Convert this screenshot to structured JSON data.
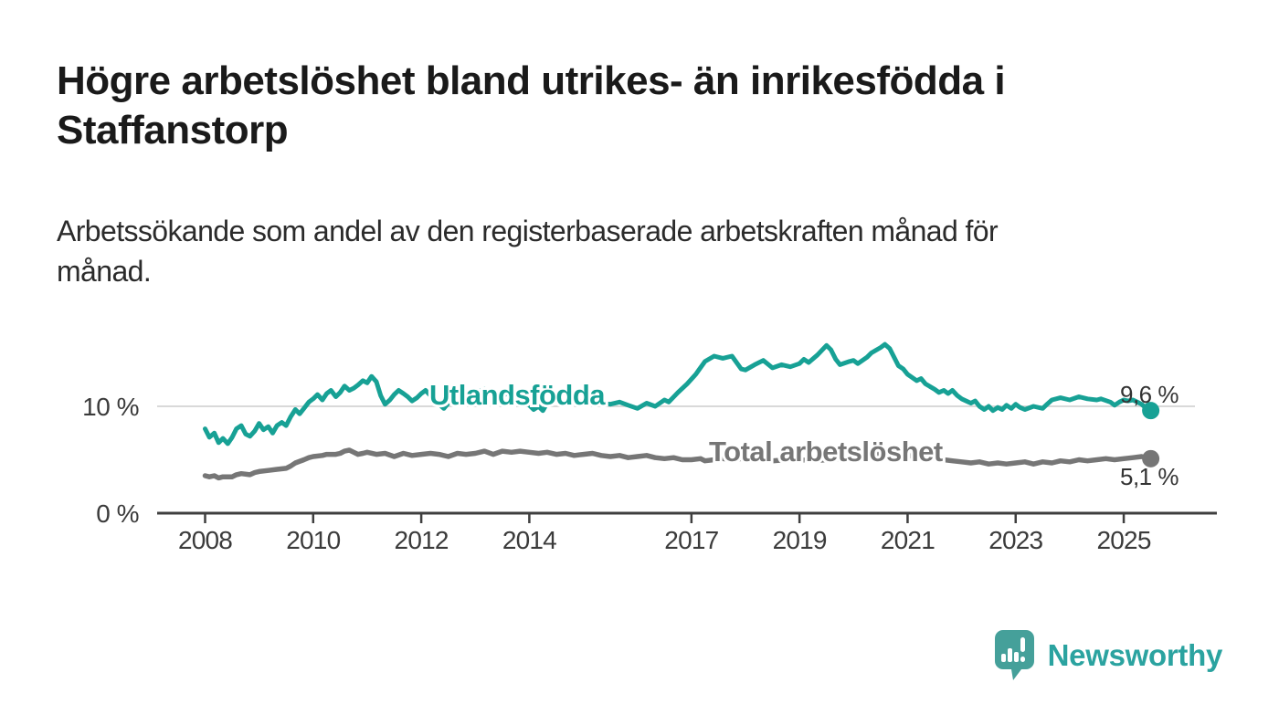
{
  "header": {
    "title": "Högre arbetslöshet bland utrikes- än inrikesfödda i\nStaffanstorp",
    "subtitle": "Arbetssökande som andel av den registerbaserade arbetskraften månad för\nmånad."
  },
  "branding": {
    "name": "Newsworthy",
    "logo_icon": "bar-chart-speech-bubble",
    "logo_color": "#45a09a"
  },
  "chart_data": {
    "type": "line",
    "title": "Högre arbetslöshet bland utrikes- än inrikesfödda i Staffanstorp",
    "subtitle": "Arbetssökande som andel av den registerbaserade arbetskraften månad för månad.",
    "grid": "single horizontal gridline at 10 %",
    "legend_position": "inline labels on lines",
    "colors": {
      "gridline": "#d9d9d9",
      "axis": "#3f3f3f",
      "tick_text": "#3b3b3b",
      "end_label_text": "#333333"
    },
    "x_axis": {
      "unit": "year",
      "range": [
        2007.1,
        2026.75
      ],
      "ticks": [
        2008,
        2010,
        2012,
        2014,
        2017,
        2019,
        2021,
        2023,
        2025
      ]
    },
    "y_axis": {
      "unit": "percent",
      "range": [
        0,
        17.5
      ],
      "ticks": [
        {
          "value": 0,
          "label": "0 %"
        },
        {
          "value": 10,
          "label": "10 %"
        }
      ]
    },
    "series": [
      {
        "name": "Utlandsfödda",
        "color": "#17a195",
        "end_label": "9,6 %",
        "end_value": 9.6,
        "points": [
          [
            2008.0,
            7.9
          ],
          [
            2008.08,
            7.1
          ],
          [
            2008.17,
            7.5
          ],
          [
            2008.25,
            6.6
          ],
          [
            2008.33,
            7.0
          ],
          [
            2008.42,
            6.5
          ],
          [
            2008.5,
            7.1
          ],
          [
            2008.58,
            7.9
          ],
          [
            2008.67,
            8.2
          ],
          [
            2008.75,
            7.4
          ],
          [
            2008.83,
            7.2
          ],
          [
            2008.92,
            7.7
          ],
          [
            2009.0,
            8.4
          ],
          [
            2009.08,
            7.8
          ],
          [
            2009.17,
            8.1
          ],
          [
            2009.25,
            7.5
          ],
          [
            2009.33,
            8.2
          ],
          [
            2009.42,
            8.5
          ],
          [
            2009.5,
            8.2
          ],
          [
            2009.58,
            9.0
          ],
          [
            2009.67,
            9.7
          ],
          [
            2009.75,
            9.3
          ],
          [
            2009.83,
            9.8
          ],
          [
            2009.92,
            10.4
          ],
          [
            2010.0,
            10.7
          ],
          [
            2010.08,
            11.1
          ],
          [
            2010.17,
            10.6
          ],
          [
            2010.25,
            11.2
          ],
          [
            2010.33,
            11.5
          ],
          [
            2010.42,
            10.9
          ],
          [
            2010.5,
            11.3
          ],
          [
            2010.58,
            11.9
          ],
          [
            2010.67,
            11.5
          ],
          [
            2010.75,
            11.7
          ],
          [
            2010.83,
            12.0
          ],
          [
            2010.92,
            12.4
          ],
          [
            2011.0,
            12.2
          ],
          [
            2011.08,
            12.8
          ],
          [
            2011.17,
            12.3
          ],
          [
            2011.25,
            11.0
          ],
          [
            2011.33,
            10.2
          ],
          [
            2011.42,
            10.6
          ],
          [
            2011.5,
            11.1
          ],
          [
            2011.58,
            11.5
          ],
          [
            2011.67,
            11.2
          ],
          [
            2011.75,
            10.9
          ],
          [
            2011.83,
            10.5
          ],
          [
            2011.92,
            10.8
          ],
          [
            2012.0,
            11.2
          ],
          [
            2012.08,
            11.5
          ],
          [
            2012.17,
            11.0
          ],
          [
            2012.25,
            10.6
          ],
          [
            2012.33,
            10.2
          ],
          [
            2012.42,
            9.8
          ],
          [
            2012.5,
            10.3
          ],
          [
            2012.58,
            10.7
          ],
          [
            2012.67,
            11.0
          ],
          [
            2012.83,
            10.8
          ],
          [
            2012.92,
            11.1
          ],
          [
            2013.0,
            11.3
          ],
          [
            2013.17,
            11.6
          ],
          [
            2013.33,
            11.2
          ],
          [
            2013.5,
            11.0
          ],
          [
            2013.67,
            11.4
          ],
          [
            2013.83,
            10.9
          ],
          [
            2014.0,
            10.1
          ],
          [
            2014.08,
            9.7
          ],
          [
            2014.17,
            10.0
          ],
          [
            2014.25,
            9.6
          ],
          [
            2014.33,
            10.3
          ],
          [
            2014.5,
            10.6
          ],
          [
            2014.67,
            10.3
          ],
          [
            2014.83,
            10.6
          ],
          [
            2015.0,
            10.4
          ],
          [
            2015.17,
            10.6
          ],
          [
            2015.33,
            10.3
          ],
          [
            2015.5,
            10.2
          ],
          [
            2015.67,
            10.4
          ],
          [
            2015.83,
            10.1
          ],
          [
            2016.0,
            9.8
          ],
          [
            2016.17,
            10.3
          ],
          [
            2016.33,
            10.0
          ],
          [
            2016.5,
            10.6
          ],
          [
            2016.58,
            10.4
          ],
          [
            2016.75,
            11.3
          ],
          [
            2016.92,
            12.1
          ],
          [
            2017.08,
            13.0
          ],
          [
            2017.25,
            14.2
          ],
          [
            2017.42,
            14.7
          ],
          [
            2017.58,
            14.5
          ],
          [
            2017.75,
            14.7
          ],
          [
            2017.92,
            13.5
          ],
          [
            2018.0,
            13.4
          ],
          [
            2018.17,
            13.9
          ],
          [
            2018.33,
            14.3
          ],
          [
            2018.5,
            13.6
          ],
          [
            2018.67,
            13.9
          ],
          [
            2018.83,
            13.7
          ],
          [
            2019.0,
            14.0
          ],
          [
            2019.08,
            14.4
          ],
          [
            2019.17,
            14.1
          ],
          [
            2019.33,
            14.8
          ],
          [
            2019.5,
            15.7
          ],
          [
            2019.58,
            15.3
          ],
          [
            2019.67,
            14.4
          ],
          [
            2019.75,
            13.9
          ],
          [
            2019.92,
            14.2
          ],
          [
            2020.0,
            14.3
          ],
          [
            2020.08,
            14.0
          ],
          [
            2020.25,
            14.6
          ],
          [
            2020.33,
            15.0
          ],
          [
            2020.5,
            15.5
          ],
          [
            2020.58,
            15.8
          ],
          [
            2020.67,
            15.4
          ],
          [
            2020.75,
            14.6
          ],
          [
            2020.83,
            13.8
          ],
          [
            2020.92,
            13.5
          ],
          [
            2021.0,
            13.0
          ],
          [
            2021.17,
            12.4
          ],
          [
            2021.25,
            12.6
          ],
          [
            2021.33,
            12.1
          ],
          [
            2021.5,
            11.6
          ],
          [
            2021.58,
            11.3
          ],
          [
            2021.67,
            11.5
          ],
          [
            2021.75,
            11.2
          ],
          [
            2021.83,
            11.5
          ],
          [
            2021.92,
            11.0
          ],
          [
            2022.0,
            10.7
          ],
          [
            2022.17,
            10.3
          ],
          [
            2022.25,
            10.5
          ],
          [
            2022.33,
            10.0
          ],
          [
            2022.42,
            9.7
          ],
          [
            2022.5,
            10.0
          ],
          [
            2022.58,
            9.6
          ],
          [
            2022.67,
            9.9
          ],
          [
            2022.75,
            9.7
          ],
          [
            2022.83,
            10.1
          ],
          [
            2022.92,
            9.8
          ],
          [
            2023.0,
            10.2
          ],
          [
            2023.08,
            9.9
          ],
          [
            2023.17,
            9.7
          ],
          [
            2023.33,
            10.0
          ],
          [
            2023.5,
            9.8
          ],
          [
            2023.58,
            10.2
          ],
          [
            2023.67,
            10.6
          ],
          [
            2023.83,
            10.8
          ],
          [
            2024.0,
            10.6
          ],
          [
            2024.17,
            10.9
          ],
          [
            2024.33,
            10.7
          ],
          [
            2024.5,
            10.6
          ],
          [
            2024.58,
            10.7
          ],
          [
            2024.75,
            10.4
          ],
          [
            2024.83,
            10.1
          ],
          [
            2024.92,
            10.4
          ],
          [
            2025.0,
            10.6
          ],
          [
            2025.08,
            10.5
          ],
          [
            2025.17,
            10.6
          ],
          [
            2025.25,
            10.4
          ],
          [
            2025.33,
            10.2
          ],
          [
            2025.42,
            9.8
          ],
          [
            2025.5,
            9.6
          ]
        ]
      },
      {
        "name": "Total arbetslöshet",
        "color": "#767676",
        "end_label": "5,1 %",
        "end_value": 5.1,
        "points": [
          [
            2008.0,
            3.5
          ],
          [
            2008.08,
            3.4
          ],
          [
            2008.17,
            3.5
          ],
          [
            2008.25,
            3.3
          ],
          [
            2008.33,
            3.4
          ],
          [
            2008.5,
            3.4
          ],
          [
            2008.58,
            3.6
          ],
          [
            2008.67,
            3.7
          ],
          [
            2008.83,
            3.6
          ],
          [
            2008.92,
            3.8
          ],
          [
            2009.0,
            3.9
          ],
          [
            2009.17,
            4.0
          ],
          [
            2009.33,
            4.1
          ],
          [
            2009.5,
            4.2
          ],
          [
            2009.58,
            4.4
          ],
          [
            2009.67,
            4.7
          ],
          [
            2009.83,
            5.0
          ],
          [
            2009.92,
            5.2
          ],
          [
            2010.0,
            5.3
          ],
          [
            2010.17,
            5.4
          ],
          [
            2010.25,
            5.5
          ],
          [
            2010.42,
            5.5
          ],
          [
            2010.5,
            5.6
          ],
          [
            2010.58,
            5.8
          ],
          [
            2010.67,
            5.9
          ],
          [
            2010.75,
            5.7
          ],
          [
            2010.83,
            5.5
          ],
          [
            2010.92,
            5.6
          ],
          [
            2011.0,
            5.7
          ],
          [
            2011.17,
            5.5
          ],
          [
            2011.33,
            5.6
          ],
          [
            2011.5,
            5.3
          ],
          [
            2011.67,
            5.6
          ],
          [
            2011.83,
            5.4
          ],
          [
            2012.0,
            5.5
          ],
          [
            2012.17,
            5.6
          ],
          [
            2012.33,
            5.5
          ],
          [
            2012.5,
            5.3
          ],
          [
            2012.67,
            5.6
          ],
          [
            2012.83,
            5.5
          ],
          [
            2013.0,
            5.6
          ],
          [
            2013.17,
            5.8
          ],
          [
            2013.33,
            5.5
          ],
          [
            2013.5,
            5.8
          ],
          [
            2013.67,
            5.7
          ],
          [
            2013.83,
            5.8
          ],
          [
            2014.0,
            5.7
          ],
          [
            2014.17,
            5.6
          ],
          [
            2014.33,
            5.7
          ],
          [
            2014.5,
            5.5
          ],
          [
            2014.67,
            5.6
          ],
          [
            2014.83,
            5.4
          ],
          [
            2015.0,
            5.5
          ],
          [
            2015.17,
            5.6
          ],
          [
            2015.33,
            5.4
          ],
          [
            2015.5,
            5.3
          ],
          [
            2015.67,
            5.4
          ],
          [
            2015.83,
            5.2
          ],
          [
            2016.0,
            5.3
          ],
          [
            2016.17,
            5.4
          ],
          [
            2016.33,
            5.2
          ],
          [
            2016.5,
            5.1
          ],
          [
            2016.67,
            5.2
          ],
          [
            2016.83,
            5.0
          ],
          [
            2017.0,
            5.0
          ],
          [
            2017.17,
            5.1
          ],
          [
            2017.25,
            4.9
          ],
          [
            2017.42,
            5.0
          ],
          [
            2017.5,
            5.2
          ],
          [
            2017.58,
            5.1
          ],
          [
            2017.75,
            5.0
          ],
          [
            2017.92,
            5.1
          ],
          [
            2018.0,
            5.0
          ],
          [
            2018.25,
            5.1
          ],
          [
            2018.5,
            4.9
          ],
          [
            2018.75,
            5.0
          ],
          [
            2019.0,
            5.0
          ],
          [
            2019.25,
            4.9
          ],
          [
            2019.5,
            5.0
          ],
          [
            2019.75,
            5.1
          ],
          [
            2020.0,
            5.1
          ],
          [
            2020.17,
            5.3
          ],
          [
            2020.33,
            5.6
          ],
          [
            2020.5,
            5.5
          ],
          [
            2020.67,
            5.4
          ],
          [
            2020.83,
            5.3
          ],
          [
            2021.0,
            5.4
          ],
          [
            2021.17,
            5.3
          ],
          [
            2021.33,
            5.2
          ],
          [
            2021.5,
            5.1
          ],
          [
            2021.67,
            5.0
          ],
          [
            2021.83,
            4.9
          ],
          [
            2022.0,
            4.8
          ],
          [
            2022.17,
            4.7
          ],
          [
            2022.33,
            4.8
          ],
          [
            2022.5,
            4.6
          ],
          [
            2022.67,
            4.7
          ],
          [
            2022.83,
            4.6
          ],
          [
            2023.0,
            4.7
          ],
          [
            2023.17,
            4.8
          ],
          [
            2023.33,
            4.6
          ],
          [
            2023.5,
            4.8
          ],
          [
            2023.67,
            4.7
          ],
          [
            2023.83,
            4.9
          ],
          [
            2024.0,
            4.8
          ],
          [
            2024.17,
            5.0
          ],
          [
            2024.33,
            4.9
          ],
          [
            2024.5,
            5.0
          ],
          [
            2024.67,
            5.1
          ],
          [
            2024.83,
            5.0
          ],
          [
            2025.0,
            5.1
          ],
          [
            2025.17,
            5.2
          ],
          [
            2025.33,
            5.3
          ],
          [
            2025.42,
            5.2
          ],
          [
            2025.5,
            5.1
          ]
        ]
      }
    ]
  }
}
